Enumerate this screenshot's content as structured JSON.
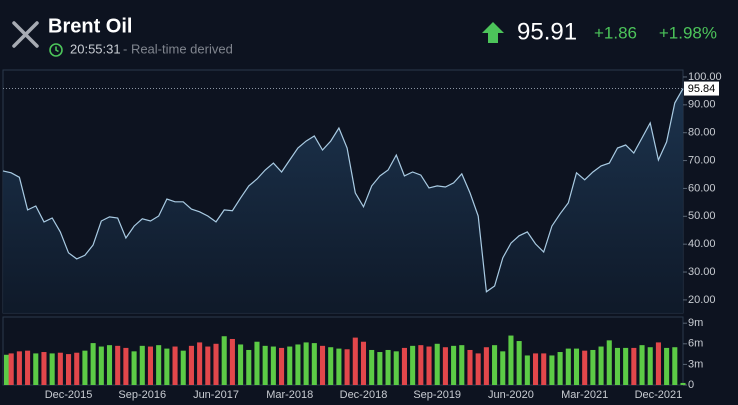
{
  "header": {
    "title": "Brent Oil",
    "time": "20:55:31",
    "source": "- Real-time derived",
    "price": "95.91",
    "change": "+1.86",
    "change_pct": "+1.98%"
  },
  "chart_data": [
    {
      "type": "area",
      "categories": [
        null,
        null,
        null,
        null,
        null,
        null,
        null,
        null,
        "Dec-2015",
        null,
        null,
        null,
        null,
        null,
        null,
        null,
        null,
        "Sep-2016",
        null,
        null,
        null,
        null,
        null,
        null,
        null,
        null,
        "Jun-2017",
        null,
        null,
        null,
        null,
        null,
        null,
        null,
        null,
        "Mar-2018",
        null,
        null,
        null,
        null,
        null,
        null,
        null,
        null,
        "Dec-2018",
        null,
        null,
        null,
        null,
        null,
        null,
        null,
        null,
        "Sep-2019",
        null,
        null,
        null,
        null,
        null,
        null,
        null,
        null,
        "Jun-2020",
        null,
        null,
        null,
        null,
        null,
        null,
        null,
        null,
        "Mar-2021",
        null,
        null,
        null,
        null,
        null,
        null,
        null,
        null,
        "Dec-2021",
        null,
        null,
        null
      ],
      "series": [
        {
          "color": "#a9cbe3",
          "values": [
            66.3,
            65.6,
            64,
            52.3,
            53.7,
            48,
            49.4,
            44.4,
            36.9,
            34.7,
            36,
            39.7,
            48.3,
            49.8,
            49.4,
            42.2,
            46.5,
            49.1,
            48.3,
            50.1,
            56.2,
            55.2,
            55.2,
            52.6,
            51.6,
            50.1,
            48,
            52.3,
            52,
            56.6,
            60.9,
            63.4,
            66.6,
            69.1,
            65.9,
            70.2,
            74.5,
            77,
            78.8,
            73.8,
            77,
            81.7,
            74.5,
            58.4,
            53.4,
            60.9,
            64.5,
            66.6,
            72,
            64.5,
            65.9,
            64.8,
            60.2,
            60.9,
            60.5,
            62,
            65.2,
            58.4,
            50.1,
            22.9,
            25,
            35.1,
            40.4,
            43,
            44.4,
            40.1,
            37.2,
            46.5,
            50.9,
            54.8,
            65.6,
            63.1,
            65.9,
            68.1,
            69.1,
            74.5,
            75.6,
            72.7,
            78.1,
            83.5,
            70.2,
            76.7,
            90.7,
            95.84
          ]
        }
      ],
      "ylim": [
        15.3,
        102.5
      ],
      "yticks": [
        {
          "value": 100,
          "label": "100.00"
        },
        {
          "value": 90,
          "label": "90.00"
        },
        {
          "value": 80,
          "label": "80.00"
        },
        {
          "value": 70,
          "label": "70.00"
        },
        {
          "value": 60,
          "label": "60.00"
        },
        {
          "value": 50,
          "label": "50.00"
        },
        {
          "value": 40,
          "label": "40.00"
        },
        {
          "value": 30,
          "label": "30.00"
        },
        {
          "value": 20,
          "label": "20.00"
        }
      ]
    },
    {
      "type": "bar",
      "series": [
        {
          "values": [
            4.4,
            4.6,
            4.9,
            5.0,
            4.6,
            4.8,
            4.6,
            4.7,
            4.5,
            4.7,
            5.0,
            6.1,
            5.6,
            5.8,
            5.7,
            5.4,
            4.9,
            5.7,
            5.6,
            5.8,
            5.3,
            5.6,
            5.0,
            5.7,
            6.2,
            5.6,
            6.0,
            7.1,
            6.7,
            5.9,
            5.1,
            6.3,
            5.7,
            5.6,
            5.4,
            5.6,
            5.9,
            6.2,
            6.1,
            5.7,
            5.5,
            5.3,
            5.2,
            6.9,
            6.3,
            5.1,
            4.8,
            5.1,
            4.9,
            5.4,
            5.7,
            5.8,
            5.6,
            6.0,
            5.5,
            5.7,
            5.8,
            5.1,
            4.6,
            5.5,
            5.8,
            4.9,
            7.2,
            6.4,
            4.3,
            4.6,
            4.6,
            4.3,
            4.8,
            5.3,
            5.3,
            5.0,
            5.1,
            5.6,
            6.5,
            5.4,
            5.4,
            5.4,
            5.8,
            5.5,
            6.2,
            5.4,
            5.5,
            0.3
          ]
        }
      ],
      "colors": {
        "up": "#5ccb46",
        "down": "#e2474b"
      },
      "ylim": [
        0,
        9.9
      ],
      "yticks": [
        {
          "value": 9,
          "label": "9m"
        },
        {
          "value": 6,
          "label": "6m"
        },
        {
          "value": 3,
          "label": "3m"
        },
        0
      ]
    }
  ]
}
